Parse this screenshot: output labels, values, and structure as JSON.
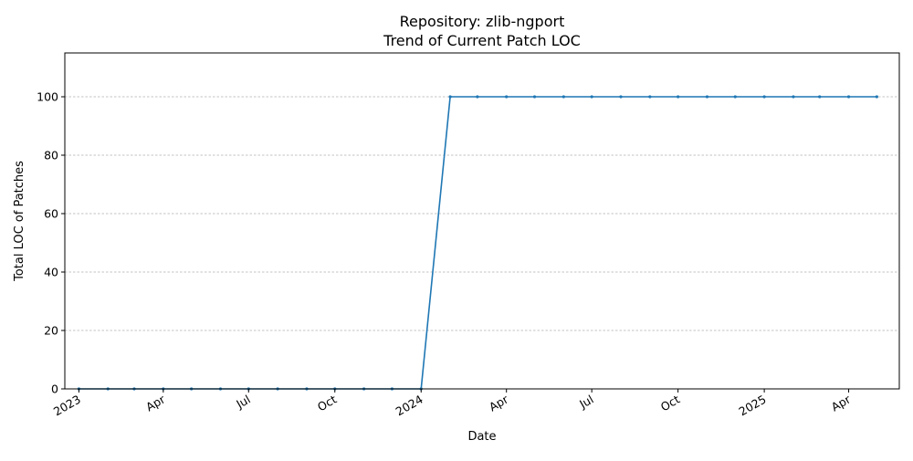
{
  "chart_data": {
    "type": "line",
    "title": "Repository: zlib-ngport",
    "subtitle": "Trend of Current Patch LOC",
    "xlabel": "Date",
    "ylabel": "Total LOC of Patches",
    "ylim": [
      0,
      115
    ],
    "yticks": [
      0,
      20,
      40,
      60,
      80,
      100
    ],
    "xlim": [
      "2022-12-17",
      "2025-05-25"
    ],
    "xticks": [
      {
        "date": "2023-01-01",
        "label": "2023"
      },
      {
        "date": "2023-04-01",
        "label": "Apr"
      },
      {
        "date": "2023-07-01",
        "label": "Jul"
      },
      {
        "date": "2023-10-01",
        "label": "Oct"
      },
      {
        "date": "2024-01-01",
        "label": "2024"
      },
      {
        "date": "2024-04-01",
        "label": "Apr"
      },
      {
        "date": "2024-07-01",
        "label": "Jul"
      },
      {
        "date": "2024-10-01",
        "label": "Oct"
      },
      {
        "date": "2025-01-01",
        "label": "2025"
      },
      {
        "date": "2025-04-01",
        "label": "Apr"
      }
    ],
    "grid": "y",
    "series": [
      {
        "color": "#1f77b4",
        "x": [
          "2023-01-01",
          "2023-02-01",
          "2023-03-01",
          "2023-04-01",
          "2023-05-01",
          "2023-06-01",
          "2023-07-01",
          "2023-08-01",
          "2023-09-01",
          "2023-10-01",
          "2023-11-01",
          "2023-12-01",
          "2024-01-01",
          "2024-02-01",
          "2024-03-01",
          "2024-04-01",
          "2024-05-01",
          "2024-06-01",
          "2024-07-01",
          "2024-08-01",
          "2024-09-01",
          "2024-10-01",
          "2024-11-01",
          "2024-12-01",
          "2025-01-01",
          "2025-02-01",
          "2025-03-01",
          "2025-04-01",
          "2025-05-01"
        ],
        "y": [
          0,
          0,
          0,
          0,
          0,
          0,
          0,
          0,
          0,
          0,
          0,
          0,
          0,
          100,
          100,
          100,
          100,
          100,
          100,
          100,
          100,
          100,
          100,
          100,
          100,
          100,
          100,
          100,
          100
        ]
      }
    ]
  }
}
